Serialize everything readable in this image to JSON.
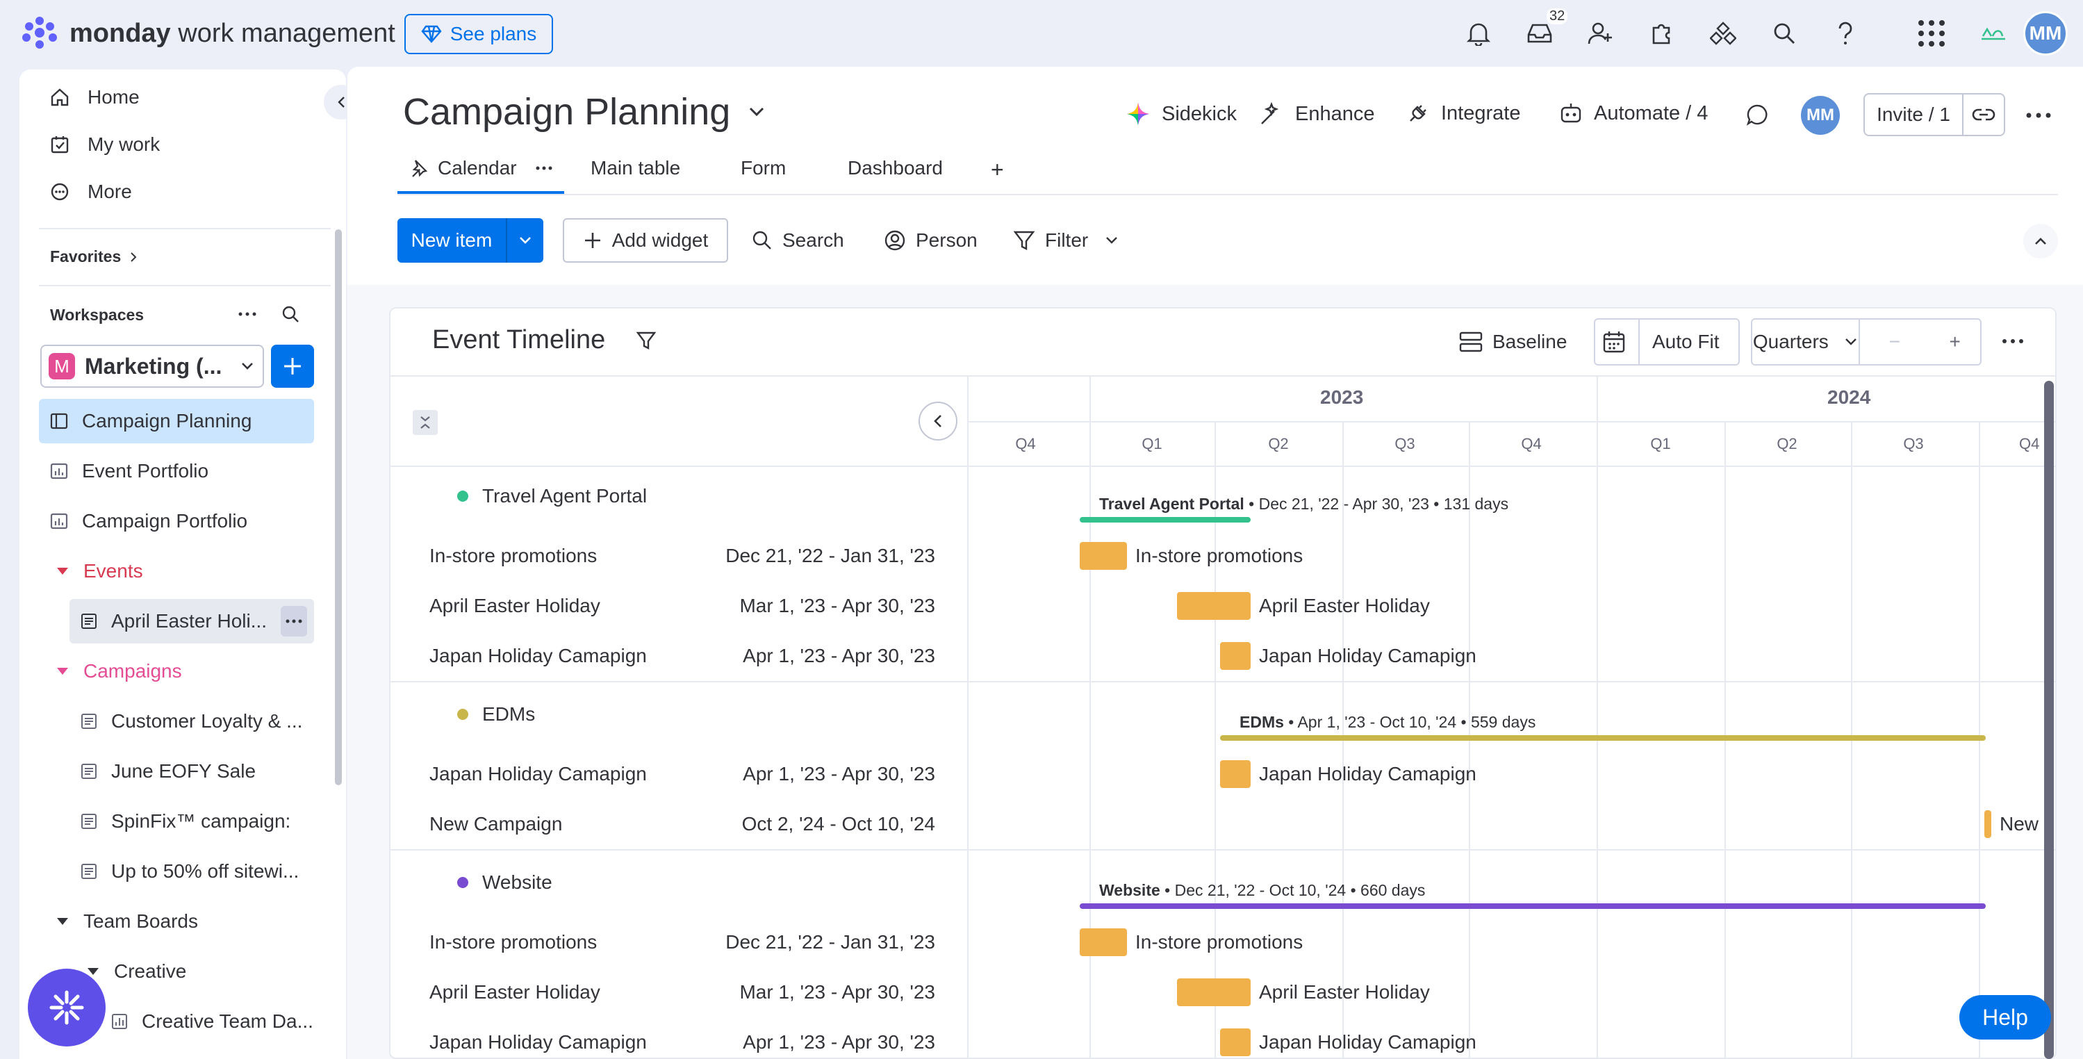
{
  "topbar": {
    "brand_bold": "monday",
    "brand_rest": " work management",
    "see_plans": "See plans",
    "inbox_count": "32",
    "avatar": "MM",
    "icons": [
      "bell-icon",
      "inbox-icon",
      "invite-members-icon",
      "apps-icon",
      "integrations-icon",
      "search-icon",
      "help-icon",
      "product-switcher-icon"
    ]
  },
  "sidebar": {
    "nav": [
      {
        "label": "Home",
        "icon": "home-icon"
      },
      {
        "label": "My work",
        "icon": "my-work-icon"
      },
      {
        "label": "More",
        "icon": "more-icon"
      }
    ],
    "favorites_label": "Favorites",
    "workspaces_label": "Workspaces",
    "workspace_letter": "M",
    "workspace_name": "Marketing (...",
    "items": [
      {
        "label": "Campaign Planning",
        "active": true
      },
      {
        "label": "Event Portfolio"
      },
      {
        "label": "Campaign Portfolio"
      }
    ],
    "folders": [
      {
        "label": "Events",
        "color": "#d83a52",
        "children": [
          "April Easter Holi..."
        ]
      },
      {
        "label": "Campaigns",
        "color": "#e44c93",
        "children": [
          "Customer Loyalty & ...",
          "June EOFY Sale",
          "SpinFix™ campaign:",
          "Up to 50% off sitewi..."
        ]
      },
      {
        "label": "Team Boards",
        "color": "#323338",
        "children": []
      }
    ],
    "creative_label": "Creative",
    "creative_child": "Creative Team Da..."
  },
  "board": {
    "title": "Campaign Planning",
    "actions": [
      "Sidekick",
      "Enhance",
      "Integrate",
      "Automate / 4"
    ],
    "avatar": "MM",
    "invite": "Invite / 1",
    "tabs": [
      "Calendar",
      "Main table",
      "Form",
      "Dashboard"
    ],
    "add_tab": "+",
    "new_item": "New item",
    "add_widget": "Add widget",
    "search": "Search",
    "person": "Person",
    "filter": "Filter"
  },
  "widget": {
    "title": "Event Timeline",
    "baseline": "Baseline",
    "auto_fit": "Auto Fit",
    "quarters": "Quarters",
    "zoom_out": "−",
    "zoom_in": "+"
  },
  "timeline": {
    "years": [
      "2023",
      "2024"
    ],
    "quarters": [
      "Q4",
      "Q1",
      "Q2",
      "Q3",
      "Q4",
      "Q1",
      "Q2",
      "Q3",
      "Q4"
    ],
    "groups": [
      {
        "name": "Travel Agent Portal",
        "color": "#33c18d",
        "summary_name": "Travel Agent Portal",
        "summary_rest": " • Dec 21, '22 - Apr 30, '23 • 131 days",
        "rows": [
          {
            "name": "In-store promotions",
            "date": "Dec 21, '22 - Jan 31, '23"
          },
          {
            "name": "April Easter Holiday",
            "date": "Mar 1, '23 - Apr 30, '23"
          },
          {
            "name": "Japan Holiday Camapign",
            "date": "Apr 1, '23 - Apr 30, '23"
          }
        ]
      },
      {
        "name": "EDMs",
        "color": "#c9b64a",
        "summary_name": "EDMs",
        "summary_rest": " • Apr 1, '23 - Oct 10, '24 • 559 days",
        "rows": [
          {
            "name": "Japan Holiday Camapign",
            "date": "Apr 1, '23 - Apr 30, '23"
          },
          {
            "name": "New Campaign",
            "date": "Oct 2, '24 - Oct 10, '24",
            "bar_label": "New C"
          }
        ]
      },
      {
        "name": "Website",
        "color": "#784bd1",
        "summary_name": "Website",
        "summary_rest": " • Dec 21, '22 - Oct 10, '24 • 660 days",
        "rows": [
          {
            "name": "In-store promotions",
            "date": "Dec 21, '22 - Jan 31, '23"
          },
          {
            "name": "April Easter Holiday",
            "date": "Mar 1, '23 - Apr 30, '23"
          },
          {
            "name": "Japan Holiday Camapign",
            "date": "Apr 1, '23 - Apr 30, '23"
          }
        ]
      }
    ],
    "bar_color": "#f0b14b"
  },
  "help": "Help"
}
